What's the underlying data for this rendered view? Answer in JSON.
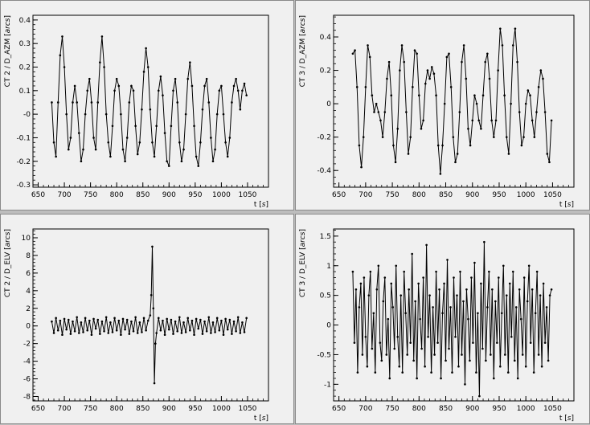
{
  "chart_data": [
    {
      "type": "line",
      "ylabel_main": "CT 2 / D_AZM",
      "ylabel_unit": "arcs",
      "xlabel_main": "t",
      "xlabel_unit": "s",
      "xlim": [
        640,
        1090
      ],
      "ylim": [
        -0.31,
        0.42
      ],
      "xticks": [
        650,
        700,
        750,
        800,
        850,
        900,
        950,
        1000,
        1050
      ],
      "xtick_labels": [
        "650",
        "700",
        "750",
        "800",
        "850",
        "900",
        "950",
        "1000",
        "1050"
      ],
      "yticks": [
        -0.3,
        -0.2,
        -0.1,
        0,
        0.1,
        0.2,
        0.3,
        0.4
      ],
      "ytick_labels": [
        "-0.3",
        "-0.2",
        "-0.1",
        "-0",
        "0.1",
        "0.2",
        "0.3",
        "0.4"
      ],
      "series": [
        {
          "x": [
            676,
            680,
            684,
            688,
            692,
            696,
            700,
            704,
            708,
            712,
            716,
            720,
            724,
            728,
            732,
            736,
            740,
            744,
            748,
            752,
            756,
            760,
            764,
            768,
            772,
            776,
            780,
            784,
            788,
            792,
            796,
            800,
            804,
            808,
            812,
            816,
            820,
            824,
            828,
            832,
            836,
            840,
            844,
            848,
            852,
            856,
            860,
            864,
            868,
            872,
            876,
            880,
            884,
            888,
            892,
            896,
            900,
            904,
            908,
            912,
            916,
            920,
            924,
            928,
            932,
            936,
            940,
            944,
            948,
            952,
            956,
            960,
            964,
            968,
            972,
            976,
            980,
            984,
            988,
            992,
            996,
            1000,
            1004,
            1008,
            1012,
            1016,
            1020,
            1024,
            1028,
            1032,
            1036,
            1040,
            1044,
            1048
          ],
          "y": [
            0.05,
            -0.12,
            -0.18,
            0.05,
            0.25,
            0.33,
            0.2,
            0.0,
            -0.15,
            -0.1,
            0.05,
            0.12,
            0.05,
            -0.08,
            -0.2,
            -0.15,
            0.0,
            0.1,
            0.15,
            0.05,
            -0.1,
            -0.15,
            0.05,
            0.22,
            0.33,
            0.2,
            0.0,
            -0.12,
            -0.18,
            -0.05,
            0.1,
            0.15,
            0.12,
            0.0,
            -0.15,
            -0.2,
            -0.1,
            0.05,
            0.12,
            0.1,
            -0.05,
            -0.17,
            -0.12,
            0.02,
            0.18,
            0.28,
            0.2,
            0.02,
            -0.12,
            -0.18,
            -0.05,
            0.1,
            0.16,
            0.08,
            -0.08,
            -0.2,
            -0.22,
            -0.05,
            0.1,
            0.15,
            0.05,
            -0.12,
            -0.2,
            -0.15,
            0.0,
            0.15,
            0.22,
            0.12,
            -0.05,
            -0.18,
            -0.22,
            -0.12,
            0.02,
            0.12,
            0.15,
            0.05,
            -0.1,
            -0.2,
            -0.15,
            0.0,
            0.1,
            0.12,
            0.0,
            -0.12,
            -0.18,
            -0.1,
            0.05,
            0.12,
            0.15,
            0.1,
            0.02,
            0.1,
            0.13,
            0.08
          ]
        }
      ]
    },
    {
      "type": "line",
      "ylabel_main": "CT 3 / D_AZM",
      "ylabel_unit": "arcs",
      "xlabel_main": "t",
      "xlabel_unit": "s",
      "xlim": [
        640,
        1090
      ],
      "ylim": [
        -0.5,
        0.53
      ],
      "xticks": [
        650,
        700,
        750,
        800,
        850,
        900,
        950,
        1000,
        1050
      ],
      "xtick_labels": [
        "650",
        "700",
        "750",
        "800",
        "850",
        "900",
        "950",
        "1000",
        "1050"
      ],
      "yticks": [
        -0.4,
        -0.2,
        0,
        0.2,
        0.4
      ],
      "ytick_labels": [
        "-0.4",
        "-0.2",
        "0",
        "0.2",
        "0.4"
      ],
      "series": [
        {
          "x": [
            676,
            680,
            684,
            688,
            692,
            696,
            700,
            704,
            708,
            712,
            716,
            720,
            724,
            728,
            732,
            736,
            740,
            744,
            748,
            752,
            756,
            760,
            764,
            768,
            772,
            776,
            780,
            784,
            788,
            792,
            796,
            800,
            804,
            808,
            812,
            816,
            820,
            824,
            828,
            832,
            836,
            840,
            844,
            848,
            852,
            856,
            860,
            864,
            868,
            872,
            876,
            880,
            884,
            888,
            892,
            896,
            900,
            904,
            908,
            912,
            916,
            920,
            924,
            928,
            932,
            936,
            940,
            944,
            948,
            952,
            956,
            960,
            964,
            968,
            972,
            976,
            980,
            984,
            988,
            992,
            996,
            1000,
            1004,
            1008,
            1012,
            1016,
            1020,
            1024,
            1028,
            1032,
            1036,
            1040,
            1044,
            1048
          ],
          "y": [
            0.3,
            0.32,
            0.1,
            -0.25,
            -0.38,
            -0.2,
            0.1,
            0.35,
            0.28,
            0.05,
            -0.05,
            0.0,
            -0.05,
            -0.1,
            -0.2,
            -0.05,
            0.15,
            0.25,
            0.05,
            -0.25,
            -0.35,
            -0.15,
            0.2,
            0.35,
            0.25,
            -0.05,
            -0.3,
            -0.2,
            0.1,
            0.32,
            0.3,
            0.05,
            -0.15,
            -0.1,
            0.12,
            0.2,
            0.15,
            0.22,
            0.18,
            0.05,
            -0.25,
            -0.42,
            -0.25,
            0.0,
            0.28,
            0.3,
            0.1,
            -0.2,
            -0.35,
            -0.3,
            -0.05,
            0.25,
            0.35,
            0.15,
            -0.15,
            -0.25,
            -0.1,
            0.05,
            0.0,
            -0.1,
            -0.15,
            0.05,
            0.25,
            0.3,
            0.15,
            -0.1,
            -0.2,
            -0.1,
            0.2,
            0.45,
            0.35,
            0.05,
            -0.2,
            -0.3,
            0.0,
            0.35,
            0.45,
            0.25,
            -0.05,
            -0.25,
            -0.2,
            0.0,
            0.08,
            0.05,
            -0.1,
            -0.2,
            -0.05,
            0.1,
            0.2,
            0.15,
            -0.05,
            -0.3,
            -0.35,
            -0.1
          ]
        }
      ]
    },
    {
      "type": "line",
      "ylabel_main": "CT 2 / D_ELV",
      "ylabel_unit": "arcs",
      "xlabel_main": "t",
      "xlabel_unit": "s",
      "xlim": [
        640,
        1090
      ],
      "ylim": [
        -8.5,
        11
      ],
      "xticks": [
        650,
        700,
        750,
        800,
        850,
        900,
        950,
        1000,
        1050
      ],
      "xtick_labels": [
        "650",
        "700",
        "750",
        "800",
        "850",
        "900",
        "950",
        "1000",
        "1050"
      ],
      "yticks": [
        -8,
        -6,
        -4,
        -2,
        0,
        2,
        4,
        6,
        8,
        10
      ],
      "ytick_labels": [
        "-8",
        "-6",
        "-4",
        "-2",
        "0",
        "2",
        "4",
        "6",
        "8",
        "10"
      ],
      "series": [
        {
          "x": [
            676,
            680,
            684,
            688,
            692,
            696,
            700,
            704,
            708,
            712,
            716,
            720,
            724,
            728,
            732,
            736,
            740,
            744,
            748,
            752,
            756,
            760,
            764,
            768,
            772,
            776,
            780,
            784,
            788,
            792,
            796,
            800,
            804,
            808,
            812,
            816,
            820,
            824,
            828,
            832,
            836,
            840,
            844,
            848,
            852,
            856,
            860,
            864,
            866,
            868,
            870,
            872,
            874,
            876,
            880,
            884,
            888,
            892,
            896,
            900,
            904,
            908,
            912,
            916,
            920,
            924,
            928,
            932,
            936,
            940,
            944,
            948,
            952,
            956,
            960,
            964,
            968,
            972,
            976,
            980,
            984,
            988,
            992,
            996,
            1000,
            1004,
            1008,
            1012,
            1016,
            1020,
            1024,
            1028,
            1032,
            1036,
            1040,
            1044,
            1048
          ],
          "y": [
            0.5,
            -0.8,
            0.9,
            -0.5,
            0.6,
            -1.0,
            0.8,
            -0.4,
            0.7,
            -0.9,
            0.5,
            -0.6,
            1.0,
            -0.8,
            0.4,
            -0.7,
            0.9,
            -0.5,
            0.6,
            -1.0,
            0.8,
            -0.3,
            0.7,
            -0.9,
            0.5,
            -0.6,
            1.0,
            -0.8,
            0.4,
            -0.7,
            0.9,
            -0.5,
            0.6,
            -1.0,
            0.8,
            -0.4,
            0.7,
            -0.9,
            0.5,
            -0.6,
            1.0,
            -0.8,
            0.4,
            -0.7,
            0.9,
            -0.5,
            0.6,
            1.2,
            3.5,
            9.0,
            2.0,
            -6.5,
            -2.0,
            -0.8,
            0.9,
            -0.5,
            0.6,
            -1.0,
            0.8,
            -0.4,
            0.7,
            -0.9,
            0.5,
            -0.6,
            1.0,
            -0.8,
            0.4,
            -0.7,
            0.9,
            -0.5,
            0.6,
            -1.0,
            0.8,
            -0.3,
            0.7,
            -0.9,
            0.5,
            -0.6,
            1.0,
            -0.8,
            0.4,
            -0.7,
            0.9,
            -0.5,
            0.6,
            -1.0,
            0.8,
            -0.4,
            0.7,
            -0.9,
            0.5,
            -0.6,
            1.0,
            -0.8,
            0.4,
            -0.7,
            0.9
          ]
        }
      ]
    },
    {
      "type": "line",
      "ylabel_main": "CT 3 / D_ELV",
      "ylabel_unit": "arcs",
      "xlabel_main": "t",
      "xlabel_unit": "s",
      "xlim": [
        640,
        1090
      ],
      "ylim": [
        -1.28,
        1.62
      ],
      "xticks": [
        650,
        700,
        750,
        800,
        850,
        900,
        950,
        1000,
        1050
      ],
      "xtick_labels": [
        "650",
        "700",
        "750",
        "800",
        "850",
        "900",
        "950",
        "1000",
        "1050"
      ],
      "yticks": [
        -1,
        -0.5,
        0,
        0.5,
        1,
        1.5
      ],
      "ytick_labels": [
        "-1",
        "-0.5",
        "0",
        "0.5",
        "1",
        "1.5"
      ],
      "series": [
        {
          "x": [
            676,
            679,
            682,
            685,
            688,
            691,
            694,
            697,
            700,
            703,
            706,
            709,
            712,
            715,
            718,
            721,
            724,
            727,
            730,
            733,
            736,
            739,
            742,
            745,
            748,
            751,
            754,
            757,
            760,
            763,
            766,
            769,
            772,
            775,
            778,
            781,
            784,
            787,
            790,
            793,
            796,
            799,
            802,
            805,
            808,
            811,
            814,
            817,
            820,
            823,
            826,
            829,
            832,
            835,
            838,
            841,
            844,
            847,
            850,
            853,
            856,
            859,
            862,
            865,
            868,
            871,
            874,
            877,
            880,
            883,
            886,
            889,
            892,
            895,
            898,
            901,
            904,
            907,
            910,
            913,
            916,
            919,
            922,
            925,
            928,
            931,
            934,
            937,
            940,
            943,
            946,
            949,
            952,
            955,
            958,
            961,
            964,
            967,
            970,
            973,
            976,
            979,
            982,
            985,
            988,
            991,
            994,
            997,
            1000,
            1003,
            1006,
            1009,
            1012,
            1015,
            1018,
            1021,
            1024,
            1027,
            1030,
            1033,
            1036,
            1039,
            1042,
            1045,
            1048
          ],
          "y": [
            0.9,
            -0.3,
            0.6,
            -0.8,
            0.3,
            0.7,
            -0.5,
            0.8,
            -0.2,
            -0.7,
            0.5,
            0.9,
            -0.4,
            0.2,
            -0.8,
            0.6,
            1.0,
            -0.3,
            -0.6,
            0.4,
            0.8,
            -0.5,
            0.1,
            -0.9,
            0.7,
            0.3,
            -0.4,
            1.0,
            -0.2,
            -0.7,
            0.5,
            -0.8,
            0.9,
            0.2,
            -0.5,
            0.6,
            -0.3,
            1.2,
            -0.6,
            0.4,
            -0.9,
            0.7,
            0.1,
            -0.4,
            0.8,
            -0.7,
            1.35,
            -0.2,
            0.5,
            -0.8,
            0.3,
            -0.5,
            0.9,
            -0.3,
            0.6,
            -0.9,
            0.2,
            0.7,
            -0.6,
            1.1,
            -0.4,
            0.3,
            -0.8,
            0.8,
            -0.2,
            0.5,
            -0.7,
            0.9,
            -0.5,
            0.4,
            -1.0,
            0.6,
            0.1,
            -0.6,
            0.8,
            -0.3,
            1.05,
            -0.8,
            0.2,
            -1.2,
            0.7,
            -0.4,
            1.4,
            -0.6,
            0.3,
            0.9,
            -0.5,
            0.6,
            -0.9,
            0.4,
            -0.3,
            0.8,
            -0.7,
            0.2,
            1.0,
            -0.5,
            0.5,
            -0.8,
            0.7,
            -0.2,
            0.9,
            -0.6,
            0.3,
            -0.9,
            0.6,
            0.1,
            -0.5,
            0.8,
            -0.7,
            0.4,
            1.0,
            -0.3,
            0.6,
            -0.8,
            0.2,
            0.9,
            -0.5,
            0.5,
            -0.7,
            0.7,
            -0.3,
            0.3,
            -0.6,
            0.5,
            0.6
          ]
        }
      ]
    }
  ]
}
